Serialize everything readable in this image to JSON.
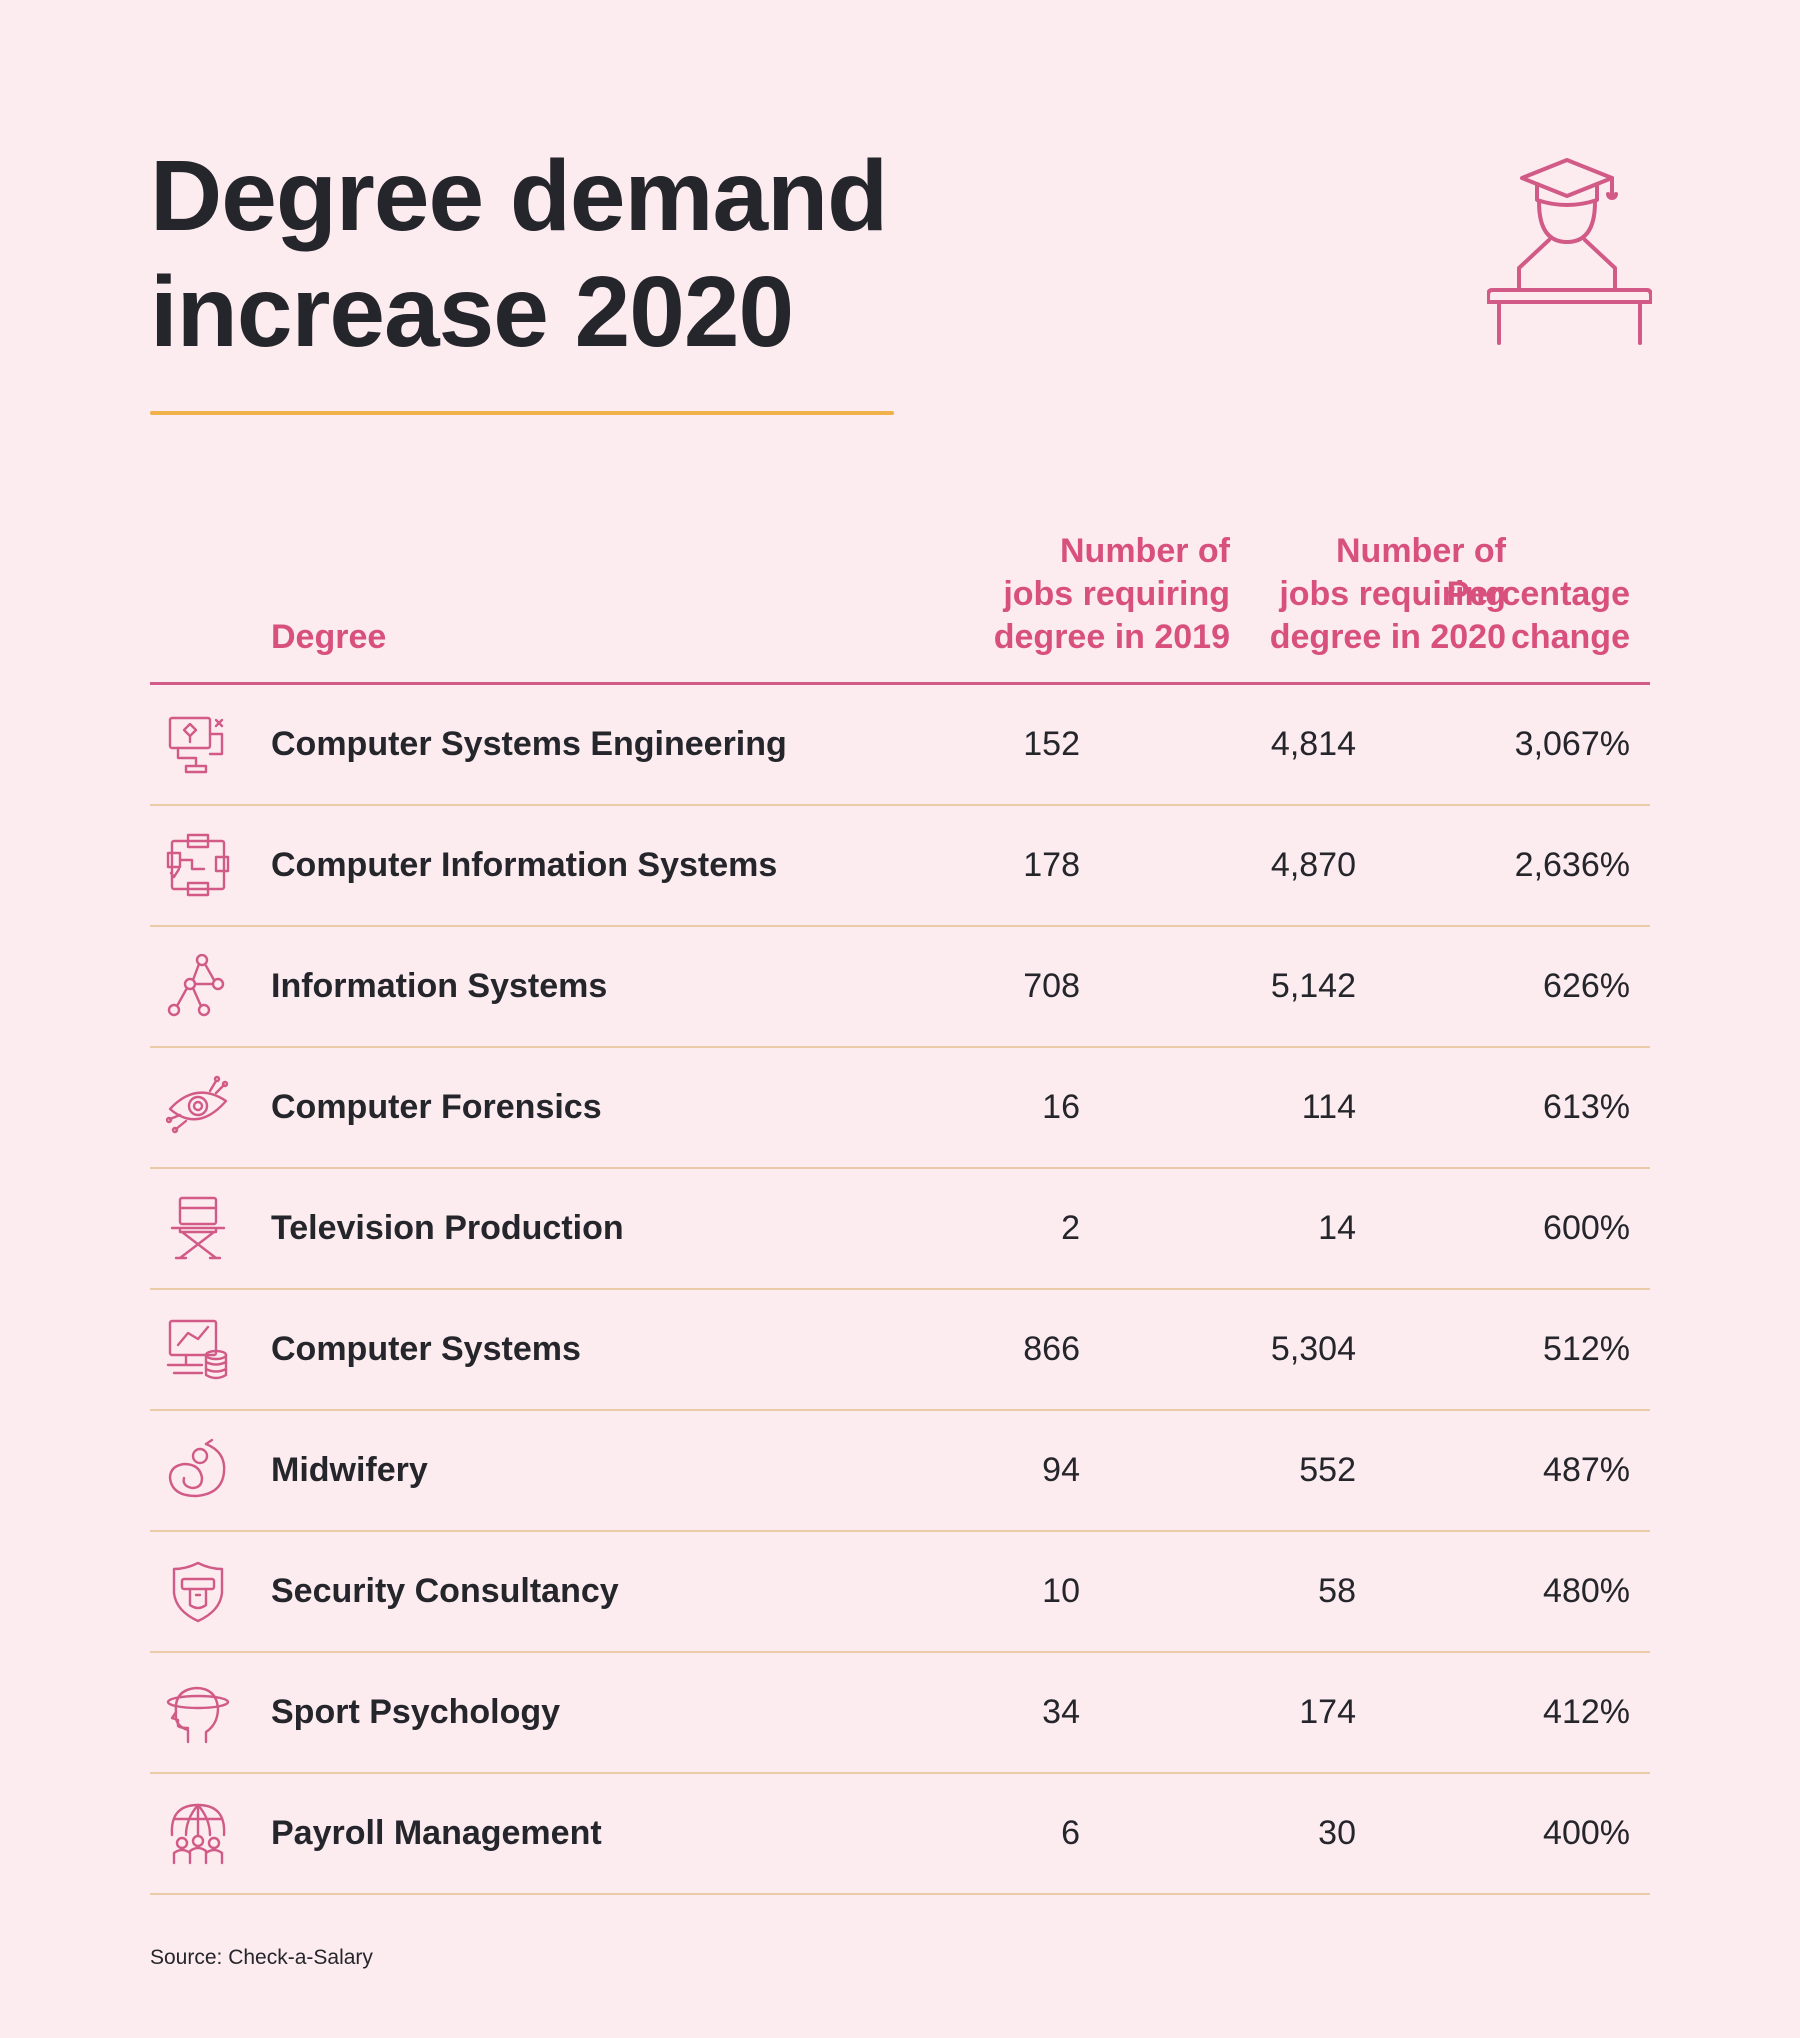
{
  "title": {
    "line1": "Degree demand",
    "line2": "increase 2020"
  },
  "colors": {
    "background": "#fcebef",
    "accent": "#d15a86",
    "title_rule": "#f0b04a",
    "row_rule": "#ebcaa7",
    "text": "#25262b"
  },
  "icons": {
    "hero": "graduate-at-desk-icon"
  },
  "chart_data": {
    "type": "table",
    "columns": [
      "Degree",
      "Number of jobs requiring degree in 2019",
      "Number of jobs requiring degree in 2020",
      "Percentage change"
    ],
    "header": {
      "degree": "Degree",
      "jobs_2019": [
        "Number of",
        "jobs requiring",
        "degree in 2019"
      ],
      "jobs_2020": [
        "Number of",
        "jobs requiring",
        "degree in 2020"
      ],
      "pct_change": [
        "Percentage",
        "change"
      ]
    },
    "rows": [
      {
        "icon": "flowchart-screen-icon",
        "degree": "Computer Systems Engineering",
        "jobs_2019": "152",
        "jobs_2020": "4,814",
        "pct_change": "3,067%"
      },
      {
        "icon": "system-diagram-icon",
        "degree": "Computer Information Systems",
        "jobs_2019": "178",
        "jobs_2020": "4,870",
        "pct_change": "2,636%"
      },
      {
        "icon": "node-network-icon",
        "degree": "Information Systems",
        "jobs_2019": "708",
        "jobs_2020": "5,142",
        "pct_change": "626%"
      },
      {
        "icon": "circuit-eye-icon",
        "degree": "Computer Forensics",
        "jobs_2019": "16",
        "jobs_2020": "114",
        "pct_change": "613%"
      },
      {
        "icon": "director-chair-icon",
        "degree": "Television Production",
        "jobs_2019": "2",
        "jobs_2020": "14",
        "pct_change": "600%"
      },
      {
        "icon": "computer-database-icon",
        "degree": "Computer Systems",
        "jobs_2019": "866",
        "jobs_2020": "5,304",
        "pct_change": "512%"
      },
      {
        "icon": "fetus-icon",
        "degree": "Midwifery",
        "jobs_2019": "94",
        "jobs_2020": "552",
        "pct_change": "487%"
      },
      {
        "icon": "security-shield-icon",
        "degree": "Security Consultancy",
        "jobs_2019": "10",
        "jobs_2020": "58",
        "pct_change": "480%"
      },
      {
        "icon": "head-orbit-icon",
        "degree": "Sport Psychology",
        "jobs_2019": "34",
        "jobs_2020": "174",
        "pct_change": "412%"
      },
      {
        "icon": "globe-people-icon",
        "degree": "Payroll Management",
        "jobs_2019": "6",
        "jobs_2020": "30",
        "pct_change": "400%"
      }
    ]
  },
  "source": "Source: Check-a-Salary"
}
